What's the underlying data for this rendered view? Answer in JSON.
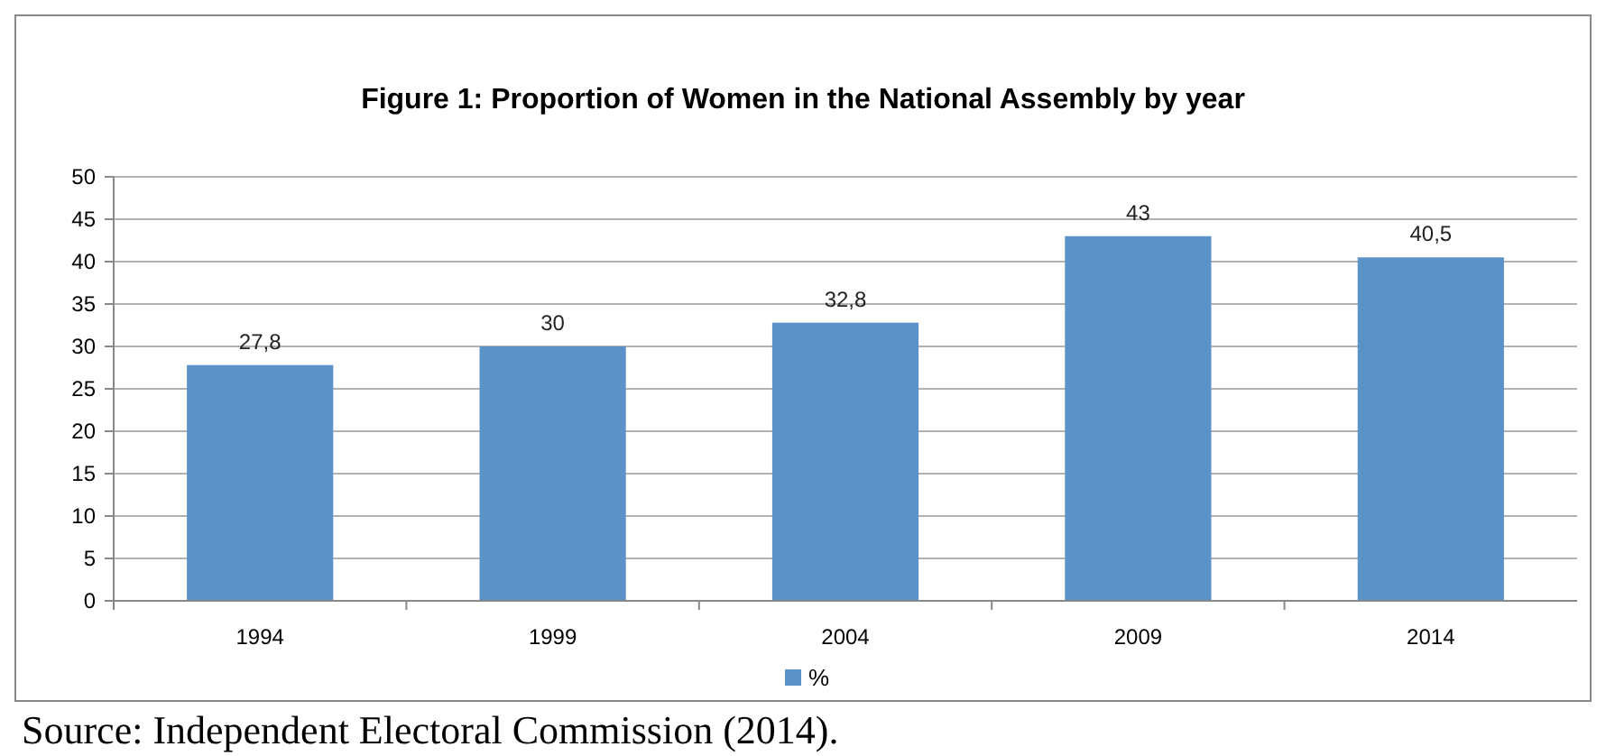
{
  "chart_data": {
    "type": "bar",
    "title": "Figure 1:  Proportion of Women in the National Assembly by year",
    "categories": [
      "1994",
      "1999",
      "2004",
      "2009",
      "2014"
    ],
    "series": [
      {
        "name": "%",
        "color": "#5b93c9",
        "values": [
          27.8,
          30,
          32.8,
          43,
          40.5
        ],
        "value_labels": [
          "27,8",
          "30",
          "32,8",
          "43",
          "40,5"
        ]
      }
    ],
    "ylim": [
      0,
      50
    ],
    "yticks": [
      0,
      5,
      10,
      15,
      20,
      25,
      30,
      35,
      40,
      45,
      50
    ],
    "grid": "y",
    "legend": "bottom",
    "annotations": [
      "Source:  Independent Electoral Commission (2014)."
    ]
  }
}
